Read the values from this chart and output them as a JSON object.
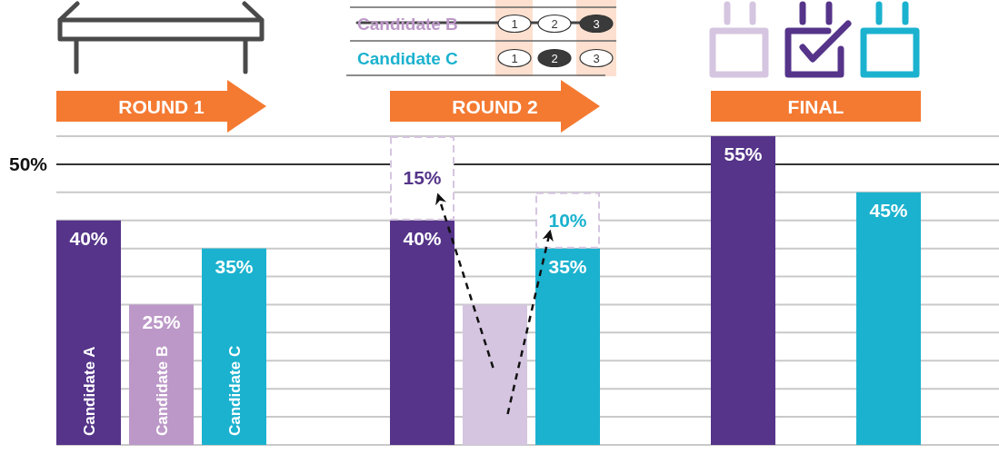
{
  "chart_data": [
    {
      "type": "bar",
      "title": "ROUND 1",
      "categories": [
        "Candidate A",
        "Candidate B",
        "Candidate C"
      ],
      "values": [
        40,
        25,
        35
      ],
      "colors": [
        "#55348a",
        "#bc98c8",
        "#1bb2cf"
      ],
      "value_labels": [
        "40%",
        "25%",
        "35%"
      ],
      "ylim": [
        0,
        55
      ],
      "yticks": [
        {
          "value": 0,
          "label": null
        },
        {
          "value": 5,
          "label": null
        },
        {
          "value": 10,
          "label": null
        },
        {
          "value": 15,
          "label": null
        },
        {
          "value": 20,
          "label": null
        },
        {
          "value": 25,
          "label": null
        },
        {
          "value": 30,
          "label": null
        },
        {
          "value": 35,
          "label": null
        },
        {
          "value": 40,
          "label": null
        },
        {
          "value": 45,
          "label": null
        },
        {
          "value": 50,
          "label": "50%"
        },
        {
          "value": 55,
          "label": null
        }
      ],
      "grid": "y",
      "ref_lines": [
        {
          "axis": "y",
          "value": 50,
          "color": "#333333"
        }
      ]
    },
    {
      "type": "bar",
      "title": "ROUND 2",
      "categories": [
        null,
        null,
        null
      ],
      "stacked": true,
      "series": [
        {
          "colors": [
            "#55348a",
            "#d5c5e0",
            "#1bb2cf"
          ],
          "values": [
            40,
            25,
            35
          ],
          "value_labels": [
            "40%",
            null,
            "35%"
          ]
        },
        {
          "color": "#d5c5e0",
          "line_style": "dashed",
          "values": [
            15,
            null,
            10
          ],
          "value_labels": [
            "15%",
            null,
            "10%"
          ]
        }
      ],
      "ylim": [
        0,
        55
      ],
      "yticks": [
        {
          "value": 0,
          "label": null
        },
        {
          "value": 5,
          "label": null
        },
        {
          "value": 10,
          "label": null
        },
        {
          "value": 15,
          "label": null
        },
        {
          "value": 20,
          "label": null
        },
        {
          "value": 25,
          "label": null
        },
        {
          "value": 30,
          "label": null
        },
        {
          "value": 35,
          "label": null
        },
        {
          "value": 40,
          "label": null
        },
        {
          "value": 45,
          "label": null
        },
        {
          "value": 50,
          "label": null
        },
        {
          "value": 55,
          "label": null
        }
      ],
      "grid": "y",
      "ref_lines": [
        {
          "axis": "y",
          "value": 50,
          "color": "#333333"
        }
      ],
      "annotations": [
        "1",
        "2",
        "3"
      ]
    },
    {
      "type": "bar",
      "title": "FINAL",
      "categories": [
        null,
        null
      ],
      "values": [
        55,
        45
      ],
      "colors": [
        "#55348a",
        "#1bb2cf"
      ],
      "value_labels": [
        "55%",
        "45%"
      ],
      "ylim": [
        0,
        55
      ],
      "yticks": [
        {
          "value": 0,
          "label": null
        },
        {
          "value": 5,
          "label": null
        },
        {
          "value": 10,
          "label": null
        },
        {
          "value": 15,
          "label": null
        },
        {
          "value": 20,
          "label": null
        },
        {
          "value": 25,
          "label": null
        },
        {
          "value": 30,
          "label": null
        },
        {
          "value": 35,
          "label": null
        },
        {
          "value": 40,
          "label": null
        },
        {
          "value": 45,
          "label": null
        },
        {
          "value": 50,
          "label": null
        },
        {
          "value": 55,
          "label": null
        }
      ],
      "grid": "y",
      "ref_lines": [
        {
          "axis": "y",
          "value": 50,
          "color": "#333333"
        }
      ]
    }
  ]
}
